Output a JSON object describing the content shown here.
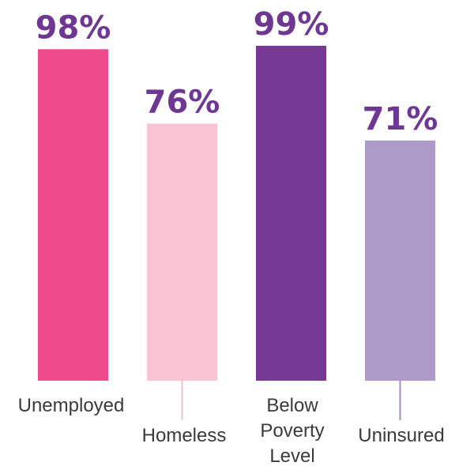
{
  "chart_data": {
    "type": "bar",
    "title": "",
    "xlabel": "",
    "ylabel": "",
    "ylim": [
      0,
      100
    ],
    "grid": false,
    "categories": [
      {
        "label": "Unemployed",
        "lines": [
          "Unemployed"
        ]
      },
      {
        "label": "Homeless",
        "lines": [
          "Homeless"
        ]
      },
      {
        "label": "Below Poverty Level",
        "lines": [
          "Below",
          "Poverty",
          "Level"
        ]
      },
      {
        "label": "Uninsured",
        "lines": [
          "Uninsured"
        ]
      }
    ],
    "values": [
      98,
      76,
      99,
      71
    ],
    "value_labels": [
      "98%",
      "76%",
      "99%",
      "71%"
    ],
    "colors": [
      "#ef4a8b",
      "#f8c4d2",
      "#763996",
      "#ae9ac9"
    ],
    "connector_colors": [
      "#ef4a8b",
      "#f6bfcf",
      "#763996",
      "#a58bc2"
    ]
  }
}
